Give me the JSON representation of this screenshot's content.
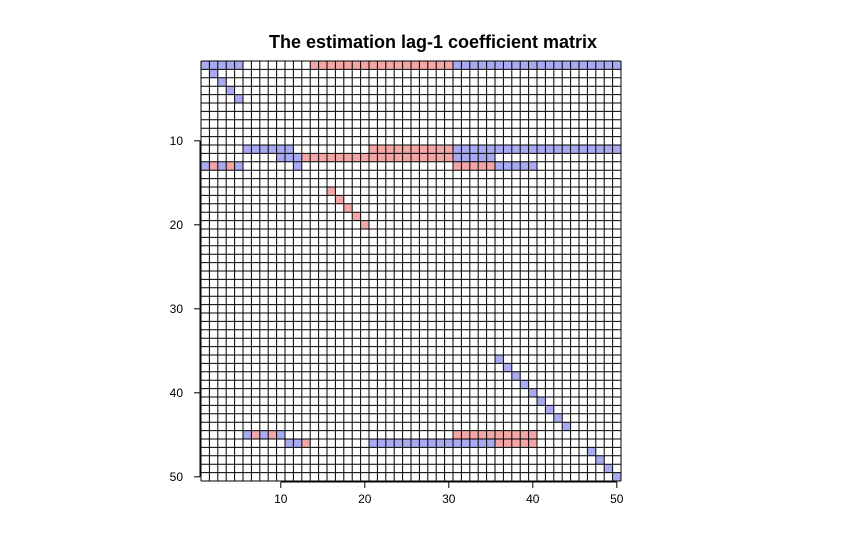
{
  "chart_data": {
    "type": "heatmap",
    "title": "The estimation lag-1 coefficient matrix",
    "xlabel": "",
    "ylabel": "",
    "nrows": 50,
    "ncols": 50,
    "xlim": [
      1,
      50
    ],
    "ylim": [
      1,
      50
    ],
    "y_axis_direction": "top-to-bottom",
    "grid": true,
    "x_ticks": [
      10,
      20,
      30,
      40,
      50
    ],
    "y_ticks": [
      10,
      20,
      30,
      40,
      50
    ],
    "color_scale": {
      "positive": "#f4a6a6",
      "negative": "#a9aaf1",
      "zero": "#ffffff"
    },
    "cells": [
      {
        "row": 1,
        "cols": [
          [
            1,
            5,
            -1
          ],
          [
            14,
            30,
            1
          ],
          [
            31,
            50,
            -1
          ]
        ]
      },
      {
        "row": 2,
        "cols": [
          [
            2,
            2,
            -1
          ]
        ]
      },
      {
        "row": 3,
        "cols": [
          [
            3,
            3,
            -1
          ]
        ]
      },
      {
        "row": 4,
        "cols": [
          [
            4,
            4,
            -1
          ]
        ]
      },
      {
        "row": 5,
        "cols": [
          [
            5,
            5,
            -1
          ]
        ]
      },
      {
        "row": 11,
        "cols": [
          [
            6,
            11,
            -1
          ],
          [
            21,
            30,
            1
          ],
          [
            31,
            50,
            -1
          ]
        ]
      },
      {
        "row": 12,
        "cols": [
          [
            10,
            12,
            -1
          ],
          [
            13,
            30,
            1
          ],
          [
            31,
            35,
            -1
          ]
        ]
      },
      {
        "row": 13,
        "cols": [
          [
            1,
            1,
            -1
          ],
          [
            2,
            2,
            1
          ],
          [
            3,
            3,
            -1
          ],
          [
            4,
            4,
            1
          ],
          [
            5,
            5,
            -1
          ],
          [
            12,
            12,
            -1
          ],
          [
            31,
            35,
            1
          ],
          [
            36,
            40,
            -1
          ]
        ]
      },
      {
        "row": 16,
        "cols": [
          [
            16,
            16,
            1
          ]
        ]
      },
      {
        "row": 17,
        "cols": [
          [
            17,
            17,
            1
          ]
        ]
      },
      {
        "row": 18,
        "cols": [
          [
            18,
            18,
            1
          ]
        ]
      },
      {
        "row": 19,
        "cols": [
          [
            19,
            19,
            1
          ]
        ]
      },
      {
        "row": 20,
        "cols": [
          [
            20,
            20,
            1
          ]
        ]
      },
      {
        "row": 36,
        "cols": [
          [
            36,
            36,
            -1
          ]
        ]
      },
      {
        "row": 37,
        "cols": [
          [
            37,
            37,
            -1
          ]
        ]
      },
      {
        "row": 38,
        "cols": [
          [
            38,
            38,
            -1
          ]
        ]
      },
      {
        "row": 39,
        "cols": [
          [
            39,
            39,
            -1
          ]
        ]
      },
      {
        "row": 40,
        "cols": [
          [
            40,
            40,
            -1
          ]
        ]
      },
      {
        "row": 41,
        "cols": [
          [
            41,
            41,
            -1
          ]
        ]
      },
      {
        "row": 42,
        "cols": [
          [
            42,
            42,
            -1
          ]
        ]
      },
      {
        "row": 43,
        "cols": [
          [
            43,
            43,
            -1
          ]
        ]
      },
      {
        "row": 44,
        "cols": [
          [
            44,
            44,
            -1
          ]
        ]
      },
      {
        "row": 45,
        "cols": [
          [
            6,
            6,
            -1
          ],
          [
            7,
            7,
            1
          ],
          [
            8,
            8,
            -1
          ],
          [
            9,
            9,
            1
          ],
          [
            10,
            10,
            -1
          ],
          [
            31,
            40,
            1
          ]
        ]
      },
      {
        "row": 46,
        "cols": [
          [
            11,
            12,
            -1
          ],
          [
            13,
            13,
            1
          ],
          [
            21,
            35,
            -1
          ],
          [
            36,
            40,
            1
          ]
        ]
      },
      {
        "row": 47,
        "cols": [
          [
            47,
            47,
            -1
          ]
        ]
      },
      {
        "row": 48,
        "cols": [
          [
            48,
            48,
            -1
          ]
        ]
      },
      {
        "row": 49,
        "cols": [
          [
            49,
            49,
            -1
          ]
        ]
      },
      {
        "row": 50,
        "cols": [
          [
            50,
            50,
            -1
          ]
        ]
      }
    ]
  }
}
